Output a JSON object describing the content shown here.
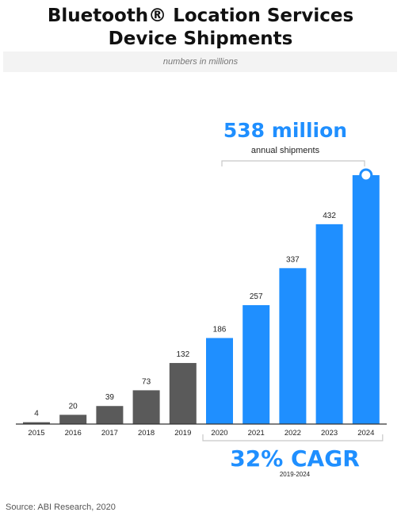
{
  "title_line1": "Bluetooth® Location Services",
  "title_line2": "Device Shipments",
  "subtitle": "numbers in millions",
  "callout": {
    "value_text": "538 million",
    "label": "annual shipments"
  },
  "cagr": {
    "value_text": "32% CAGR",
    "period": "2019-2024"
  },
  "source": "Source: ABI Research, 2020",
  "colors": {
    "historical": "#5a5a5a",
    "forecast": "#1f8fff",
    "baseline": "#333333"
  },
  "chart_data": {
    "type": "bar",
    "categories": [
      "2015",
      "2016",
      "2017",
      "2018",
      "2019",
      "2020",
      "2021",
      "2022",
      "2023",
      "2024"
    ],
    "values": [
      4,
      20,
      39,
      73,
      132,
      186,
      257,
      337,
      432,
      538
    ],
    "data_labels": [
      "4",
      "20",
      "39",
      "73",
      "132",
      "186",
      "257",
      "337",
      "432",
      ""
    ],
    "series_type": [
      "historical",
      "historical",
      "historical",
      "historical",
      "historical",
      "forecast",
      "forecast",
      "forecast",
      "forecast",
      "forecast"
    ],
    "title": "Bluetooth® Location Services Device Shipments",
    "subtitle": "numbers in millions",
    "xlabel": "",
    "ylabel": "",
    "ylim": [
      0,
      538
    ],
    "grid": false,
    "legend": "none"
  }
}
